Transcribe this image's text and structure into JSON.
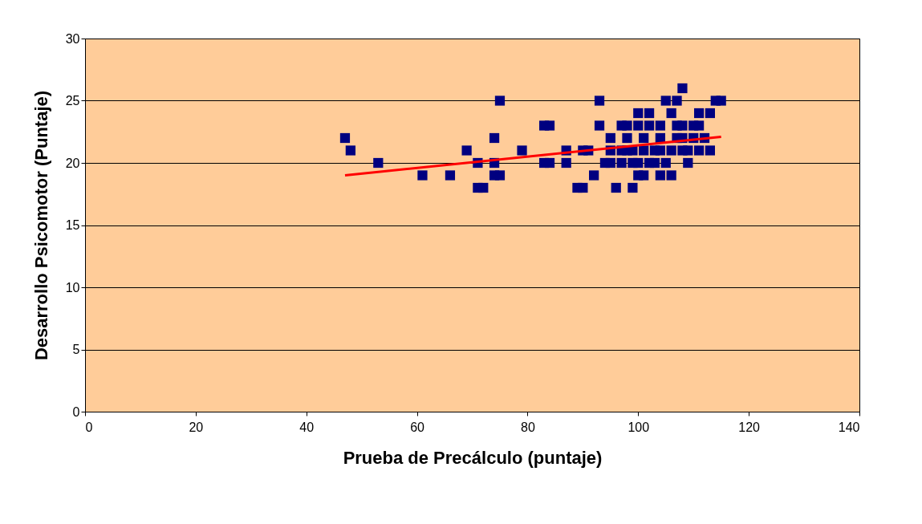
{
  "chart_data": {
    "type": "scatter",
    "xlabel": "Prueba de Precálculo (puntaje)",
    "ylabel": "Desarrollo Psicomotor (Puntaje)",
    "xlim": [
      0,
      140
    ],
    "xticks": [
      0,
      20,
      40,
      60,
      80,
      100,
      120,
      140
    ],
    "ylim": [
      0,
      30
    ],
    "yticks": [
      0,
      5,
      10,
      15,
      20,
      25,
      30
    ],
    "grid": "y",
    "series": [
      {
        "marker": "square",
        "color": "#000080",
        "x": [
          47,
          48,
          53,
          61,
          66,
          69,
          71,
          71,
          72,
          74,
          74,
          74,
          75,
          75,
          79,
          83,
          84,
          83,
          84,
          87,
          87,
          89,
          90,
          90,
          91,
          92,
          93,
          93,
          105,
          107,
          114,
          115,
          108,
          100,
          102,
          106,
          111,
          113,
          97,
          98,
          100,
          102,
          104,
          107,
          108,
          110,
          111,
          95,
          98,
          101,
          104,
          107,
          108,
          110,
          112,
          95,
          97,
          98,
          99,
          101,
          103,
          104,
          106,
          108,
          109,
          111,
          113,
          94,
          95,
          97,
          99,
          100,
          102,
          103,
          105,
          109,
          100,
          101,
          104,
          106,
          96,
          99
        ],
        "values": [
          22,
          21,
          20,
          19,
          19,
          21,
          20,
          18,
          18,
          22,
          20,
          19,
          19,
          25,
          21,
          23,
          23,
          20,
          20,
          21,
          20,
          18,
          18,
          21,
          21,
          19,
          25,
          23,
          25,
          25,
          25,
          25,
          26,
          24,
          24,
          24,
          24,
          24,
          23,
          23,
          23,
          23,
          23,
          23,
          23,
          23,
          23,
          22,
          22,
          22,
          22,
          22,
          22,
          22,
          22,
          21,
          21,
          21,
          21,
          21,
          21,
          21,
          21,
          21,
          21,
          21,
          21,
          20,
          20,
          20,
          20,
          20,
          20,
          20,
          20,
          20,
          19,
          19,
          19,
          19,
          18,
          18
        ]
      },
      {
        "type": "line",
        "marker": "none",
        "color": "#ff0000",
        "x": [
          47,
          115
        ],
        "values": [
          19.0,
          22.1
        ]
      }
    ]
  }
}
